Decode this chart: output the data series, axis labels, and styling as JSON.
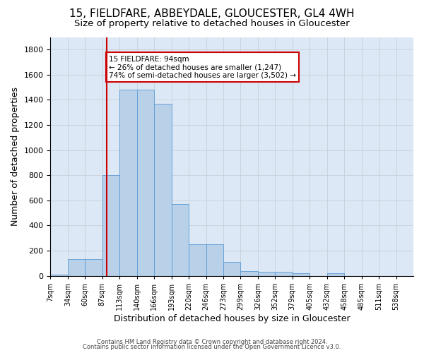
{
  "title1": "15, FIELDFARE, ABBEYDALE, GLOUCESTER, GL4 4WH",
  "title2": "Size of property relative to detached houses in Gloucester",
  "xlabel": "Distribution of detached houses by size in Gloucester",
  "ylabel": "Number of detached properties",
  "bar_values": [
    10,
    130,
    130,
    800,
    1480,
    1480,
    1370,
    570,
    250,
    250,
    110,
    35,
    30,
    30,
    20,
    0,
    20,
    0,
    0,
    0,
    0
  ],
  "tick_labels": [
    "7sqm",
    "34sqm",
    "60sqm",
    "87sqm",
    "113sqm",
    "140sqm",
    "166sqm",
    "193sqm",
    "220sqm",
    "246sqm",
    "273sqm",
    "299sqm",
    "326sqm",
    "352sqm",
    "379sqm",
    "405sqm",
    "432sqm",
    "458sqm",
    "485sqm",
    "511sqm",
    "538sqm"
  ],
  "bar_color": "#b8d0e8",
  "bar_edge_color": "#5b9bd5",
  "vline_bin": 3,
  "vline_color": "#cc0000",
  "annotation_line1": "15 FIELDFARE: 94sqm",
  "annotation_line2": "← 26% of detached houses are smaller (1,247)",
  "annotation_line3": "74% of semi-detached houses are larger (3,502) →",
  "annotation_box_color": "#cc0000",
  "ylim": [
    0,
    1900
  ],
  "yticks": [
    0,
    200,
    400,
    600,
    800,
    1000,
    1200,
    1400,
    1600,
    1800
  ],
  "grid_color": "#c8d0d8",
  "bg_color": "#dce8f5",
  "footer1": "Contains HM Land Registry data © Crown copyright and database right 2024.",
  "footer2": "Contains public sector information licensed under the Open Government Licence v3.0.",
  "title1_fontsize": 11,
  "title2_fontsize": 9.5,
  "xlabel_fontsize": 9,
  "ylabel_fontsize": 9,
  "footer_fontsize": 6,
  "tick_fontsize": 7,
  "ytick_fontsize": 8
}
